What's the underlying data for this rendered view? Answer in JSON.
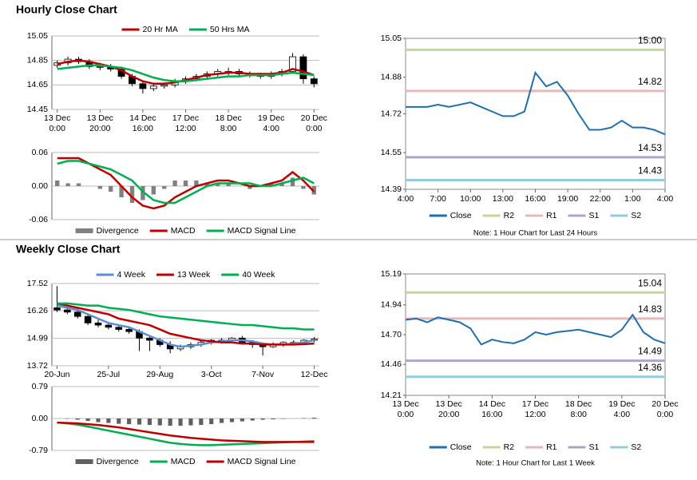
{
  "header": {
    "hourly_title": "Hourly Close Chart",
    "weekly_title": "Weekly Close Chart"
  },
  "chart_data": [
    {
      "type": "candlestick",
      "categories": [
        [
          "13 Dec",
          "0:00"
        ],
        null,
        null,
        null,
        [
          "13 Dec",
          "20:00"
        ],
        null,
        null,
        null,
        [
          "14 Dec",
          "16:00"
        ],
        null,
        null,
        null,
        [
          "17 Dec",
          "12:00"
        ],
        null,
        null,
        null,
        [
          "18 Dec",
          "8:00"
        ],
        null,
        null,
        null,
        [
          "19 Dec",
          "4:00"
        ],
        null,
        null,
        null,
        [
          "20 Dec",
          "0:00"
        ]
      ],
      "open": [
        14.81,
        14.83,
        14.86,
        14.84,
        14.8,
        14.8,
        14.78,
        14.72,
        14.66,
        14.62,
        14.64,
        14.65,
        14.68,
        14.7,
        14.72,
        14.74,
        14.76,
        14.76,
        14.74,
        14.73,
        14.72,
        14.74,
        14.76,
        14.88,
        14.7
      ],
      "high": [
        14.85,
        14.88,
        14.88,
        14.86,
        14.83,
        14.82,
        14.8,
        14.74,
        14.68,
        14.66,
        14.67,
        14.7,
        14.72,
        14.74,
        14.76,
        14.78,
        14.79,
        14.78,
        14.76,
        14.75,
        14.76,
        14.78,
        14.91,
        14.9,
        14.72
      ],
      "low": [
        14.79,
        14.81,
        14.82,
        14.78,
        14.77,
        14.76,
        14.7,
        14.64,
        14.58,
        14.6,
        14.62,
        14.63,
        14.66,
        14.68,
        14.7,
        14.72,
        14.73,
        14.72,
        14.71,
        14.7,
        14.7,
        14.72,
        14.74,
        14.66,
        14.63
      ],
      "close": [
        14.83,
        14.86,
        14.84,
        14.8,
        14.8,
        14.78,
        14.72,
        14.66,
        14.62,
        14.64,
        14.65,
        14.68,
        14.7,
        14.72,
        14.74,
        14.76,
        14.76,
        14.74,
        14.73,
        14.72,
        14.74,
        14.76,
        14.88,
        14.7,
        14.66
      ],
      "up_color": "#ffffff",
      "down_color": "#000000",
      "series": [
        {
          "name": "20 Hr MA",
          "color": "#c00000",
          "values": [
            14.82,
            14.84,
            14.85,
            14.84,
            14.82,
            14.8,
            14.77,
            14.72,
            14.68,
            14.66,
            14.66,
            14.67,
            14.69,
            14.71,
            14.73,
            14.74,
            14.75,
            14.75,
            14.74,
            14.74,
            14.74,
            14.75,
            14.78,
            14.76,
            14.73
          ]
        },
        {
          "name": "50 Hrs MA",
          "color": "#00b050",
          "values": [
            14.78,
            14.79,
            14.8,
            14.81,
            14.81,
            14.8,
            14.79,
            14.77,
            14.74,
            14.71,
            14.69,
            14.68,
            14.68,
            14.69,
            14.7,
            14.71,
            14.72,
            14.72,
            14.73,
            14.73,
            14.73,
            14.74,
            14.75,
            14.74,
            14.73
          ]
        }
      ],
      "ylim": [
        14.45,
        15.05
      ],
      "yticks": [
        14.45,
        14.65,
        14.85,
        15.05
      ],
      "grid": true
    },
    {
      "type": "macd",
      "series": [
        {
          "name": "Divergence",
          "color": "#808080",
          "values": [
            0.01,
            0.005,
            0.005,
            0,
            -0.005,
            -0.01,
            -0.02,
            -0.03,
            -0.025,
            -0.015,
            -0.005,
            0.01,
            0.01,
            0.01,
            0.005,
            0.005,
            0.005,
            0,
            -0.005,
            0,
            0.005,
            0.005,
            0.015,
            -0.005,
            -0.015
          ]
        },
        {
          "name": "MACD",
          "color": "#c00000",
          "values": [
            0.05,
            0.05,
            0.05,
            0.04,
            0.03,
            0.02,
            0.0,
            -0.02,
            -0.035,
            -0.04,
            -0.035,
            -0.02,
            -0.01,
            0.0,
            0.005,
            0.01,
            0.01,
            0.005,
            0.0,
            0.0,
            0.005,
            0.01,
            0.025,
            0.01,
            -0.01
          ]
        },
        {
          "name": "MACD Signal Line",
          "color": "#00b050",
          "values": [
            0.04,
            0.045,
            0.045,
            0.04,
            0.035,
            0.03,
            0.02,
            0.01,
            -0.01,
            -0.025,
            -0.03,
            -0.03,
            -0.02,
            -0.01,
            0.0,
            0.005,
            0.005,
            0.005,
            0.005,
            0.0,
            0.0,
            0.005,
            0.01,
            0.015,
            0.005
          ]
        }
      ],
      "ylim": [
        -0.06,
        0.06
      ],
      "yticks": [
        -0.06,
        {
          "value": 0,
          "label": "0.00"
        },
        0.06
      ],
      "grid": true
    },
    {
      "type": "line",
      "categories": [
        "4:00",
        null,
        null,
        "7:00",
        null,
        null,
        "10:00",
        null,
        null,
        "13:00",
        null,
        null,
        "16:00",
        null,
        null,
        "19:00",
        null,
        null,
        "22:00",
        null,
        null,
        "1:00",
        null,
        null,
        "4:00"
      ],
      "series": [
        {
          "name": "Close",
          "color": "#1f6fb0",
          "values": [
            14.75,
            14.75,
            14.75,
            14.76,
            14.75,
            14.76,
            14.77,
            14.75,
            14.73,
            14.71,
            14.71,
            14.73,
            14.9,
            14.84,
            14.86,
            14.8,
            14.72,
            14.65,
            14.65,
            14.66,
            14.69,
            14.66,
            14.66,
            14.65,
            14.63
          ]
        }
      ],
      "levels": [
        {
          "name": "R2",
          "color": "#c4d79b",
          "value": 15,
          "value_label": "15.00"
        },
        {
          "name": "R1",
          "color": "#e6b9b8",
          "value": 14.82
        },
        {
          "name": "S1",
          "color": "#b3a2c7",
          "value": 14.53
        },
        {
          "name": "S2",
          "color": "#93cddd",
          "value": 14.43
        }
      ],
      "ylim": [
        14.39,
        15.05
      ],
      "yticks": [
        14.39,
        14.55,
        14.72,
        14.88,
        15.05
      ],
      "note": "Note: 1 Hour Chart for Last 24 Hours"
    },
    {
      "type": "candlestick",
      "categories": [
        [
          "20-Jun"
        ],
        null,
        null,
        null,
        null,
        [
          "25-Jul"
        ],
        null,
        null,
        null,
        null,
        [
          "29-Aug"
        ],
        null,
        null,
        null,
        null,
        [
          "3-Oct"
        ],
        null,
        null,
        null,
        null,
        [
          "7-Nov"
        ],
        null,
        null,
        null,
        null,
        [
          "12-Dec"
        ]
      ],
      "open": [
        16.4,
        16.3,
        16.2,
        16.0,
        15.7,
        15.6,
        15.5,
        15.4,
        15.3,
        15.0,
        14.9,
        14.7,
        14.5,
        14.6,
        14.7,
        14.8,
        14.9,
        14.9,
        15.0,
        14.8,
        14.7,
        14.6,
        14.7,
        14.8,
        14.8,
        14.9
      ],
      "high": [
        17.4,
        16.45,
        16.3,
        16.1,
        15.85,
        15.7,
        15.6,
        15.5,
        15.4,
        15.1,
        15.0,
        14.85,
        14.7,
        14.8,
        14.9,
        14.95,
        15.0,
        15.05,
        15.1,
        14.9,
        14.8,
        14.8,
        14.85,
        14.9,
        14.95,
        15.05
      ],
      "low": [
        16.2,
        16.1,
        15.9,
        15.6,
        15.5,
        15.4,
        15.3,
        15.2,
        14.4,
        14.4,
        14.6,
        14.3,
        14.4,
        14.5,
        14.6,
        14.7,
        14.75,
        14.8,
        14.7,
        14.55,
        14.2,
        14.55,
        14.6,
        14.7,
        14.75,
        14.8
      ],
      "close": [
        16.3,
        16.2,
        16.0,
        15.7,
        15.6,
        15.5,
        15.4,
        15.3,
        15.0,
        14.9,
        14.7,
        14.5,
        14.6,
        14.7,
        14.8,
        14.9,
        14.9,
        15.0,
        14.8,
        14.7,
        14.6,
        14.7,
        14.8,
        14.8,
        14.9,
        14.95
      ],
      "up_color": "#ffffff",
      "down_color": "#000000",
      "series": [
        {
          "name": "4 Week",
          "color": "#5b8fd0",
          "values": [
            16.5,
            16.4,
            16.3,
            16.1,
            15.9,
            15.7,
            15.6,
            15.5,
            15.3,
            15.1,
            14.9,
            14.7,
            14.6,
            14.65,
            14.7,
            14.8,
            14.85,
            14.9,
            14.9,
            14.85,
            14.75,
            14.7,
            14.7,
            14.75,
            14.8,
            14.9
          ]
        },
        {
          "name": "13 Week",
          "color": "#c00000",
          "values": [
            16.6,
            16.5,
            16.4,
            16.3,
            16.2,
            16.1,
            15.9,
            15.8,
            15.7,
            15.6,
            15.4,
            15.2,
            15.1,
            15.0,
            14.9,
            14.85,
            14.8,
            14.8,
            14.75,
            14.75,
            14.7,
            14.7,
            14.7,
            14.7,
            14.72,
            14.75
          ]
        },
        {
          "name": "40 Week",
          "color": "#00b050",
          "values": [
            16.6,
            16.6,
            16.55,
            16.5,
            16.5,
            16.4,
            16.35,
            16.3,
            16.2,
            16.1,
            16.0,
            15.95,
            15.9,
            15.85,
            15.8,
            15.75,
            15.7,
            15.65,
            15.6,
            15.6,
            15.55,
            15.5,
            15.45,
            15.45,
            15.4,
            15.4
          ]
        }
      ],
      "ylim": [
        13.72,
        17.52
      ],
      "yticks": [
        13.72,
        14.99,
        16.26,
        17.52
      ],
      "grid": true
    },
    {
      "type": "macd",
      "series": [
        {
          "name": "Divergence",
          "color": "#606060",
          "values": [
            0,
            -0.01,
            -0.03,
            -0.06,
            -0.09,
            -0.11,
            -0.13,
            -0.14,
            -0.15,
            -0.16,
            -0.17,
            -0.18,
            -0.18,
            -0.17,
            -0.16,
            -0.14,
            -0.11,
            -0.09,
            -0.07,
            -0.05,
            -0.03,
            -0.02,
            -0.01,
            0,
            0.01,
            0.02
          ]
        },
        {
          "name": "MACD",
          "color": "#00b050",
          "values": [
            -0.1,
            -0.12,
            -0.15,
            -0.2,
            -0.25,
            -0.3,
            -0.35,
            -0.4,
            -0.45,
            -0.5,
            -0.55,
            -0.6,
            -0.63,
            -0.65,
            -0.66,
            -0.66,
            -0.65,
            -0.64,
            -0.63,
            -0.62,
            -0.61,
            -0.6,
            -0.59,
            -0.58,
            -0.57,
            -0.56
          ]
        },
        {
          "name": "MACD Signal Line",
          "color": "#c00000",
          "values": [
            -0.1,
            -0.11,
            -0.12,
            -0.14,
            -0.16,
            -0.19,
            -0.22,
            -0.26,
            -0.3,
            -0.34,
            -0.38,
            -0.42,
            -0.45,
            -0.48,
            -0.5,
            -0.52,
            -0.54,
            -0.55,
            -0.56,
            -0.57,
            -0.58,
            -0.58,
            -0.58,
            -0.58,
            -0.58,
            -0.58
          ]
        }
      ],
      "ylim": [
        -0.79,
        0.79
      ],
      "yticks": [
        -0.79,
        {
          "value": 0,
          "label": "0.00"
        },
        0.79
      ],
      "grid": true
    },
    {
      "type": "line",
      "categories": [
        [
          "13 Dec",
          "0:00"
        ],
        null,
        null,
        null,
        [
          "13 Dec",
          "20:00"
        ],
        null,
        null,
        null,
        [
          "14 Dec",
          "16:00"
        ],
        null,
        null,
        null,
        [
          "17 Dec",
          "12:00"
        ],
        null,
        null,
        null,
        [
          "18 Dec",
          "8:00"
        ],
        null,
        null,
        null,
        [
          "19 Dec",
          "4:00"
        ],
        null,
        null,
        null,
        [
          "20 Dec",
          "0:00"
        ]
      ],
      "series": [
        {
          "name": "Close",
          "color": "#1f6fb0",
          "values": [
            14.82,
            14.83,
            14.8,
            14.84,
            14.82,
            14.8,
            14.75,
            14.62,
            14.66,
            14.64,
            14.63,
            14.66,
            14.72,
            14.7,
            14.72,
            14.73,
            14.74,
            14.72,
            14.7,
            14.68,
            14.74,
            14.86,
            14.72,
            14.66,
            14.63
          ]
        }
      ],
      "levels": [
        {
          "name": "R2",
          "color": "#c4d79b",
          "value": 15.04
        },
        {
          "name": "R1",
          "color": "#e6b9b8",
          "value": 14.83
        },
        {
          "name": "S1",
          "color": "#b3a2c7",
          "value": 14.49
        },
        {
          "name": "S2",
          "color": "#93cddd",
          "value": 14.36
        }
      ],
      "ylim": [
        14.21,
        15.19
      ],
      "yticks": [
        14.21,
        14.46,
        {
          "value": 14.7,
          "label": "14.70"
        },
        14.94,
        15.19
      ],
      "note": "Note: 1 Hour Chart for Last 1 Week"
    }
  ]
}
